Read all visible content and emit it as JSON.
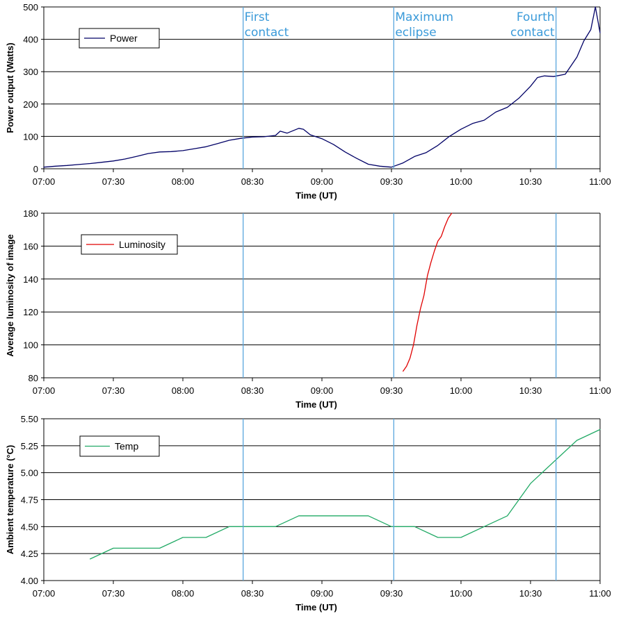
{
  "chart_data": [
    {
      "type": "line",
      "id": "power",
      "ylabel": "Power output (Watts)",
      "xlabel": "Time (UT)",
      "ylim": [
        0,
        500
      ],
      "yticks": [
        0,
        100,
        200,
        300,
        400,
        500
      ],
      "ytick_labels": [
        "0",
        "100",
        "200",
        "300",
        "400",
        "500"
      ],
      "xlim_minutes": [
        0,
        240
      ],
      "xticks_minutes": [
        0,
        30,
        60,
        90,
        120,
        150,
        180,
        210,
        240
      ],
      "xtick_labels": [
        "07:00",
        "07:30",
        "08:00",
        "08:30",
        "09:00",
        "09:30",
        "10:00",
        "10:30",
        "11:00"
      ],
      "grid": "horizontal",
      "legend": "top-left",
      "series": [
        {
          "name": "Power",
          "color": "#000066",
          "x_minutes": [
            0,
            5,
            10,
            15,
            20,
            25,
            30,
            35,
            40,
            45,
            50,
            55,
            60,
            65,
            70,
            75,
            80,
            85,
            90,
            95,
            100,
            102,
            105,
            110,
            112,
            115,
            120,
            125,
            130,
            135,
            140,
            145,
            150,
            155,
            160,
            165,
            170,
            175,
            180,
            185,
            190,
            195,
            200,
            205,
            210,
            213,
            216,
            220,
            225,
            230,
            233,
            236,
            238,
            240
          ],
          "y": [
            5,
            8,
            10,
            13,
            16,
            20,
            24,
            30,
            38,
            47,
            52,
            53,
            56,
            62,
            68,
            78,
            88,
            94,
            98,
            99,
            103,
            116,
            110,
            125,
            122,
            105,
            93,
            75,
            52,
            32,
            14,
            8,
            5,
            18,
            38,
            50,
            72,
            100,
            122,
            140,
            150,
            175,
            190,
            218,
            255,
            282,
            287,
            285,
            292,
            345,
            395,
            430,
            500,
            420
          ]
        }
      ],
      "event_labels": [
        {
          "text_lines": [
            "First",
            "contact"
          ],
          "align": "left"
        },
        {
          "text_lines": [
            "Maximum",
            "eclipse"
          ],
          "align": "left"
        },
        {
          "text_lines": [
            "Fourth",
            "contact"
          ],
          "align": "right"
        }
      ]
    },
    {
      "type": "line",
      "id": "luminosity",
      "ylabel": "Average luminosity of image",
      "xlabel": "Time (UT)",
      "ylim": [
        80,
        180
      ],
      "yticks": [
        80,
        100,
        120,
        140,
        160,
        180
      ],
      "ytick_labels": [
        "80",
        "100",
        "120",
        "140",
        "160",
        "180"
      ],
      "xlim_minutes": [
        0,
        240
      ],
      "xticks_minutes": [
        0,
        30,
        60,
        90,
        120,
        150,
        180,
        210,
        240
      ],
      "xtick_labels": [
        "07:00",
        "07:30",
        "08:00",
        "08:30",
        "09:00",
        "09:30",
        "10:00",
        "10:30",
        "11:00"
      ],
      "grid": "horizontal",
      "legend": "top-left",
      "series": [
        {
          "name": "Luminosity",
          "color": "#e00000",
          "x_minutes": [
            155,
            156.5,
            158,
            159.5,
            161,
            162.5,
            164,
            165.5,
            167,
            168.5,
            170,
            171.5,
            173,
            174.5,
            176
          ],
          "y": [
            84,
            87,
            92,
            100,
            112,
            122,
            130,
            142,
            150,
            157,
            163,
            166,
            172,
            177,
            180
          ]
        }
      ]
    },
    {
      "type": "line",
      "id": "temperature",
      "ylabel": "Ambient temperature (°C)",
      "xlabel": "Time (UT)",
      "ylim": [
        4.0,
        5.5
      ],
      "yticks": [
        4.0,
        4.25,
        4.5,
        4.75,
        5.0,
        5.25,
        5.5
      ],
      "ytick_labels": [
        "4.00",
        "4.25",
        "4.50",
        "4.75",
        "5.00",
        "5.25",
        "5.50"
      ],
      "xlim_minutes": [
        0,
        240
      ],
      "xticks_minutes": [
        0,
        30,
        60,
        90,
        120,
        150,
        180,
        210,
        240
      ],
      "xtick_labels": [
        "07:00",
        "07:30",
        "08:00",
        "08:30",
        "09:00",
        "09:30",
        "10:00",
        "10:30",
        "11:00"
      ],
      "grid": "horizontal",
      "legend": "top-left",
      "series": [
        {
          "name": "Temp",
          "color": "#22aa66",
          "x_minutes": [
            20,
            30,
            40,
            50,
            60,
            70,
            80,
            90,
            100,
            110,
            120,
            130,
            140,
            150,
            160,
            170,
            180,
            190,
            200,
            210,
            220,
            230,
            240
          ],
          "y": [
            4.2,
            4.3,
            4.3,
            4.3,
            4.4,
            4.4,
            4.5,
            4.5,
            4.5,
            4.6,
            4.6,
            4.6,
            4.6,
            4.5,
            4.5,
            4.4,
            4.4,
            4.5,
            4.6,
            4.9,
            5.1,
            5.3,
            5.4
          ]
        }
      ]
    }
  ],
  "event_markers": {
    "color": "#5aa6dd",
    "x_minutes": [
      86,
      151,
      221
    ],
    "names": [
      "First contact",
      "Maximum eclipse",
      "Fourth contact"
    ]
  }
}
